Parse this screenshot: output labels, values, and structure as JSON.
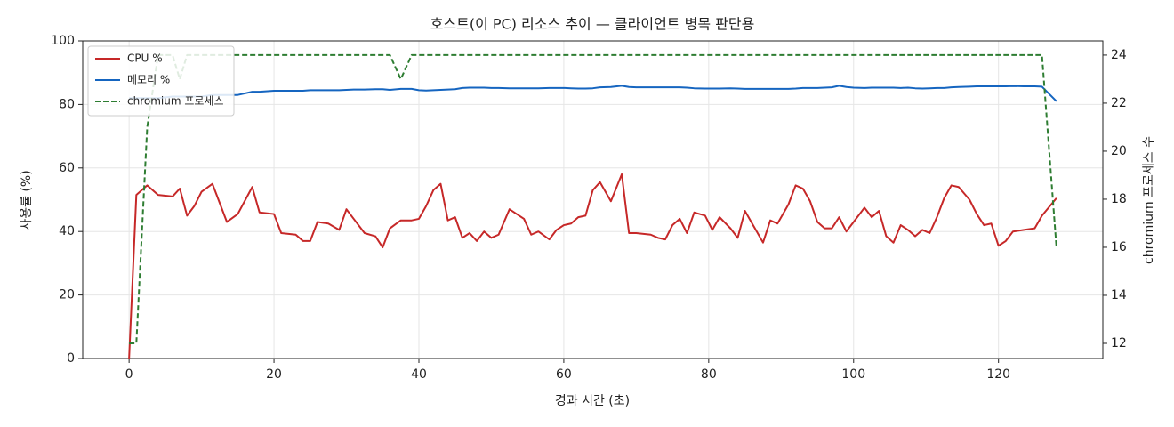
{
  "chart_data": {
    "type": "line",
    "title": "호스트(이 PC) 리소스 추이 — 클라이언트 병목 판단용",
    "x_label": "경과 시간 (초)",
    "y_label": "사용률 (%)",
    "y2_label": "chromium 프로세스 수",
    "x": [
      0,
      1,
      2.5,
      4,
      6,
      7,
      8,
      9,
      10,
      11.5,
      13.5,
      15,
      17,
      18,
      20,
      21,
      23,
      24,
      25,
      26,
      27.5,
      29,
      30,
      31,
      32.5,
      34,
      35,
      36,
      37.5,
      39,
      40,
      41,
      42,
      43,
      44,
      45,
      46,
      47,
      48,
      49,
      50,
      51,
      52.5,
      53.5,
      54.5,
      55.5,
      56.5,
      58,
      59,
      60,
      61,
      62,
      63,
      64,
      65,
      66.5,
      68,
      69,
      70,
      72,
      73,
      74,
      75,
      76,
      77,
      78,
      79.5,
      80.5,
      81.5,
      83,
      84,
      85,
      86.5,
      87.5,
      88.5,
      89.5,
      91,
      92,
      93,
      94,
      95,
      96,
      97,
      98,
      99,
      100,
      101.5,
      102.5,
      103.5,
      104.5,
      105.5,
      106.5,
      107.5,
      108.5,
      109.5,
      110.5,
      111.5,
      112.5,
      113.5,
      114.5,
      116,
      117,
      118,
      119,
      120,
      121,
      122,
      123.5,
      125,
      126,
      128
    ],
    "series": [
      {
        "name": "CPU %",
        "color": "#c62828",
        "linestyle": "solid",
        "axis": "y",
        "values": [
          0,
          51.5,
          54.5,
          51.5,
          51,
          53.5,
          45,
          48,
          52.5,
          55,
          43,
          45.5,
          54,
          46,
          45.5,
          39.5,
          39,
          37,
          37,
          43,
          42.5,
          40.5,
          47,
          44,
          39.5,
          38.5,
          35,
          41,
          43.5,
          43.5,
          44,
          48,
          53,
          55,
          43.5,
          44.5,
          38,
          39.5,
          37,
          40,
          38,
          39,
          47,
          45.5,
          44,
          39,
          40,
          37.5,
          40.5,
          42,
          42.5,
          44.5,
          45,
          53,
          55.5,
          49.5,
          58,
          39.5,
          39.5,
          39,
          38,
          37.5,
          42,
          44,
          39.5,
          46,
          45,
          40.5,
          44.5,
          41,
          38,
          46.5,
          40.5,
          36.5,
          43.5,
          42.5,
          48.5,
          54.5,
          53.5,
          49.5,
          43,
          41,
          41,
          44.5,
          40,
          43,
          47.5,
          44.5,
          46.5,
          38.5,
          36.5,
          42,
          40.5,
          38.5,
          40.5,
          39.5,
          44.5,
          50.5,
          54.5,
          54,
          50,
          45.5,
          42,
          42.5,
          35.5,
          37,
          40,
          40.5,
          41,
          45,
          50.5
        ]
      },
      {
        "name": "메모리 %",
        "color": "#1565c0",
        "linestyle": "solid",
        "axis": "y",
        "values": [
          82,
          82,
          82,
          82,
          82.5,
          82.5,
          82.5,
          82.5,
          82.5,
          83,
          83,
          83,
          84,
          84,
          84.3,
          84.3,
          84.3,
          84.3,
          84.5,
          84.5,
          84.5,
          84.5,
          84.6,
          84.7,
          84.7,
          84.8,
          84.8,
          84.6,
          84.9,
          84.9,
          84.5,
          84.4,
          84.5,
          84.6,
          84.7,
          84.8,
          85.2,
          85.3,
          85.3,
          85.3,
          85.2,
          85.2,
          85.1,
          85.1,
          85.1,
          85.1,
          85.1,
          85.2,
          85.2,
          85.2,
          85.1,
          85,
          85,
          85.1,
          85.4,
          85.5,
          85.9,
          85.5,
          85.4,
          85.4,
          85.4,
          85.4,
          85.4,
          85.4,
          85.3,
          85.1,
          85,
          85,
          85,
          85.1,
          85,
          84.9,
          84.9,
          84.9,
          84.9,
          84.9,
          84.9,
          85,
          85.2,
          85.2,
          85.2,
          85.3,
          85.4,
          85.9,
          85.5,
          85.3,
          85.2,
          85.3,
          85.3,
          85.3,
          85.3,
          85.2,
          85.3,
          85.1,
          85,
          85.1,
          85.2,
          85.2,
          85.4,
          85.5,
          85.6,
          85.7,
          85.7,
          85.7,
          85.7,
          85.7,
          85.8,
          85.7,
          85.7,
          85.6,
          81
        ]
      },
      {
        "name": "chromium 프로세스",
        "color": "#2e7d32",
        "linestyle": "dashed",
        "axis": "y2",
        "values": [
          12,
          12,
          21,
          24,
          24,
          23,
          24,
          24,
          24,
          24,
          24,
          24,
          24,
          24,
          24,
          24,
          24,
          24,
          24,
          24,
          24,
          24,
          24,
          24,
          24,
          24,
          24,
          24,
          23,
          24,
          24,
          24,
          24,
          24,
          24,
          24,
          24,
          24,
          24,
          24,
          24,
          24,
          24,
          24,
          24,
          24,
          24,
          24,
          24,
          24,
          24,
          24,
          24,
          24,
          24,
          24,
          24,
          24,
          24,
          24,
          24,
          24,
          24,
          24,
          24,
          24,
          24,
          24,
          24,
          24,
          24,
          24,
          24,
          24,
          24,
          24,
          24,
          24,
          24,
          24,
          24,
          24,
          24,
          24,
          24,
          24,
          24,
          24,
          24,
          24,
          24,
          24,
          24,
          24,
          24,
          24,
          24,
          24,
          24,
          24,
          24,
          24,
          24,
          24,
          24,
          24,
          24,
          24,
          24,
          24,
          16
        ]
      }
    ],
    "xlim": [
      -6.4,
      134.4
    ],
    "xticks": [
      0,
      20,
      40,
      60,
      80,
      100,
      120
    ],
    "ylim": [
      0,
      100
    ],
    "yticks": [
      0,
      20,
      40,
      60,
      80,
      100
    ],
    "y2lim": [
      11.37,
      24.59
    ],
    "y2ticks": [
      12,
      14,
      16,
      18,
      20,
      22,
      24
    ],
    "grid": true,
    "legend": "upper left"
  }
}
